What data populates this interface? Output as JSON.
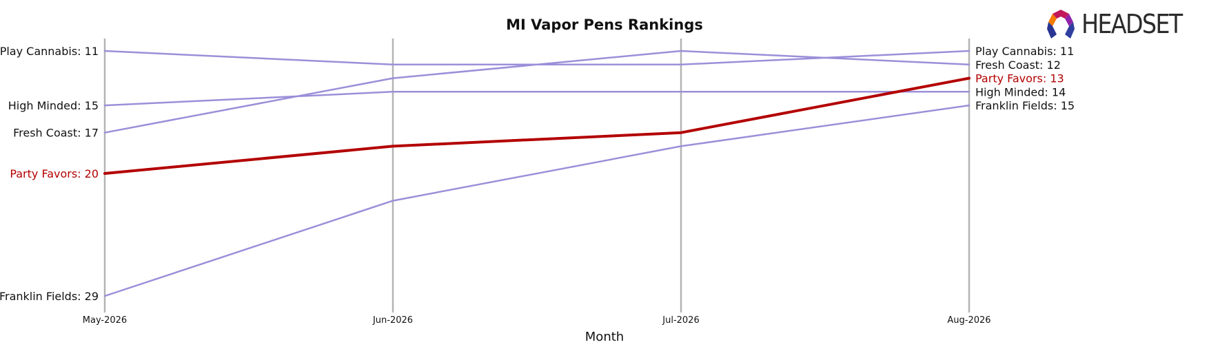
{
  "logo": {
    "text": "HEADSET"
  },
  "chart_data": {
    "type": "line",
    "title": "MI Vapor Pens Rankings",
    "xlabel": "Month",
    "ylabel": "",
    "x": [
      "May-2026",
      "Jun-2026",
      "Jul-2026",
      "Aug-2026"
    ],
    "y_inverted": true,
    "ylim": [
      10.2,
      29.3
    ],
    "grid": "vertical lines at each month",
    "highlight_color": "#b30000",
    "base_color": "#9b8fd9",
    "axis_line_color": "#b3b3b3",
    "series": [
      {
        "name": "Play Cannabis",
        "values": [
          11,
          12,
          12,
          11
        ],
        "start_label": "Play Cannabis: 11",
        "end_label": "Play Cannabis: 11",
        "highlight": false
      },
      {
        "name": "High Minded",
        "values": [
          15,
          14,
          14,
          14
        ],
        "start_label": "High Minded: 15",
        "end_label": "High Minded: 14",
        "highlight": false
      },
      {
        "name": "Fresh Coast",
        "values": [
          17,
          13,
          11,
          12
        ],
        "start_label": "Fresh Coast: 17",
        "end_label": "Fresh Coast: 12",
        "highlight": false
      },
      {
        "name": "Party Favors",
        "values": [
          20,
          18,
          17,
          13
        ],
        "start_label": "Party Favors: 20",
        "end_label": "Party Favors: 13",
        "highlight": true
      },
      {
        "name": "Franklin Fields",
        "values": [
          29,
          22,
          18,
          15
        ],
        "start_label": "Franklin Fields: 29",
        "end_label": "Franklin Fields: 15",
        "highlight": false
      }
    ]
  }
}
